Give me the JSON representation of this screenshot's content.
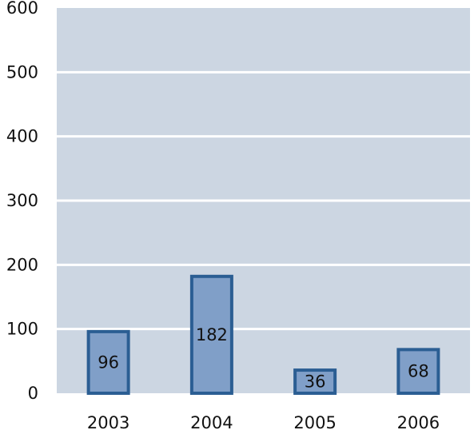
{
  "colors": {
    "plot_background": "#ccd6e2",
    "gridline": "#ffffff",
    "bar_fill": "#809fc8",
    "bar_stroke": "#2b5e93",
    "text": "#111111"
  },
  "chart_data": {
    "type": "bar",
    "title": "",
    "xlabel": "",
    "ylabel": "",
    "categories": [
      "2003",
      "2004",
      "2005",
      "2006"
    ],
    "values": [
      96,
      182,
      36,
      68
    ],
    "data_labels": [
      "96",
      "182",
      "36",
      "68"
    ],
    "ylim": [
      0,
      600
    ],
    "yticks": [
      0,
      100,
      200,
      300,
      400,
      500,
      600
    ],
    "ytick_labels": [
      "0",
      "100",
      "200",
      "300",
      "400",
      "500",
      "600"
    ],
    "grid": true,
    "legend": "none"
  }
}
